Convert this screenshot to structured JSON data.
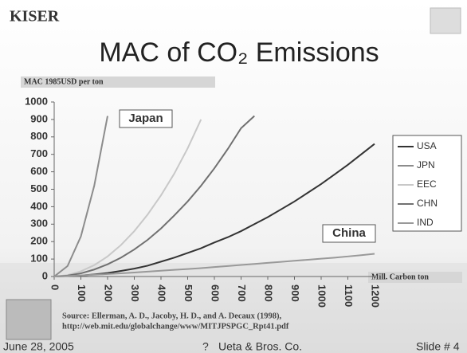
{
  "slide": {
    "logo": "KISER",
    "source_line1": "Source: Ellerman, A. D., Jacoby, H. D., and A. Decaux (1998),",
    "source_line2": "http://web.mit.edu/globalchange/www/MITJPSPGC_Rpt41.pdf",
    "footer_date": "June 28, 2005",
    "footer_mark": "?",
    "footer_company": "Ueta & Bros. Co.",
    "footer_slide": "Slide # 4"
  },
  "chart_data": {
    "type": "line",
    "title": "MAC of CO₂ Emissions",
    "y_label": "MAC 1985USD per ton",
    "x_label": "Mill. Carbon ton",
    "annotations": [
      "Japan",
      "China"
    ],
    "x": [
      0,
      50,
      100,
      150,
      200,
      250,
      300,
      350,
      400,
      450,
      500,
      550,
      600,
      650,
      700,
      750,
      800,
      850,
      900,
      950,
      1000,
      1050,
      1100,
      1150,
      1200
    ],
    "series": [
      {
        "name": "USA",
        "color": "#333333",
        "values": [
          0,
          2,
          5,
          12,
          20,
          32,
          45,
          62,
          85,
          108,
          135,
          162,
          195,
          225,
          260,
          300,
          340,
          385,
          430,
          480,
          530,
          585,
          640,
          700,
          760
        ]
      },
      {
        "name": "JPN",
        "color": "#8c8c8c",
        "values": [
          0,
          60,
          230,
          520,
          920,
          null,
          null,
          null,
          null,
          null,
          null,
          null,
          null,
          null,
          null,
          null,
          null,
          null,
          null,
          null,
          null,
          null,
          null,
          null,
          null
        ]
      },
      {
        "name": "EEC",
        "color": "#c8c8c8",
        "values": [
          0,
          8,
          30,
          65,
          115,
          180,
          260,
          355,
          465,
          590,
          735,
          900,
          null,
          null,
          null,
          null,
          null,
          null,
          null,
          null,
          null,
          null,
          null,
          null,
          null
        ]
      },
      {
        "name": "CHN",
        "color": "#707070",
        "values": [
          0,
          5,
          18,
          40,
          70,
          108,
          155,
          210,
          275,
          350,
          430,
          520,
          620,
          730,
          850,
          920,
          null,
          null,
          null,
          null,
          null,
          null,
          null,
          null,
          null
        ]
      },
      {
        "name": "IND",
        "color": "#999999",
        "values": [
          0,
          3,
          6,
          10,
          14,
          18,
          23,
          28,
          33,
          38,
          43,
          48,
          54,
          60,
          66,
          72,
          78,
          84,
          90,
          96,
          102,
          108,
          115,
          122,
          130
        ]
      }
    ],
    "xlim": [
      0,
      1200
    ],
    "xticks": [
      0,
      100,
      200,
      300,
      400,
      500,
      600,
      700,
      800,
      900,
      1000,
      1100,
      1200
    ],
    "ylim": [
      0,
      1000
    ],
    "yticks": [
      0,
      100,
      200,
      300,
      400,
      500,
      600,
      700,
      800,
      900,
      1000
    ],
    "grid": false
  }
}
